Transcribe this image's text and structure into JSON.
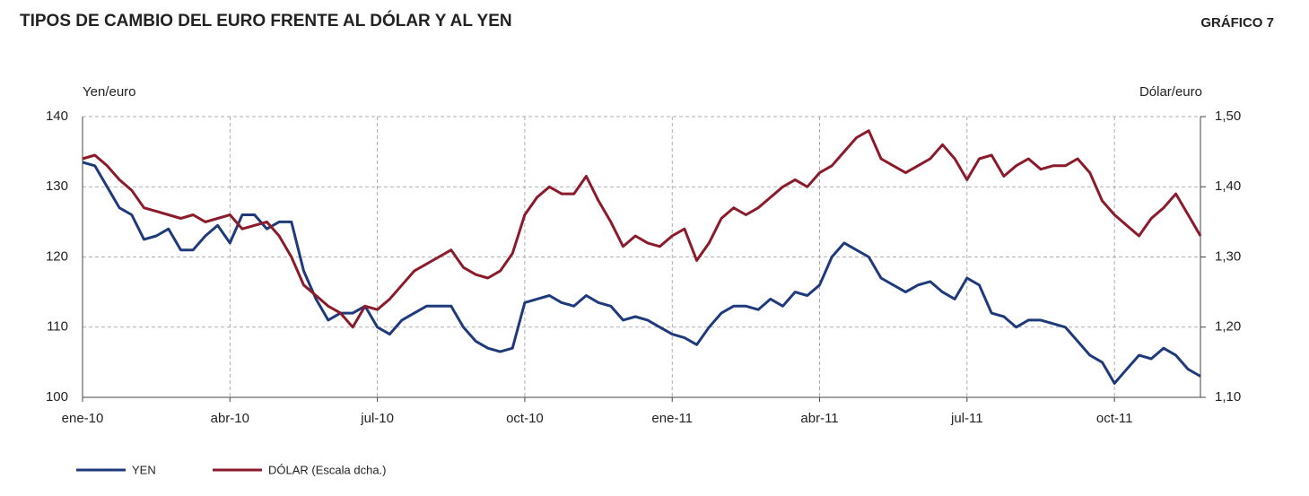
{
  "chart_data": {
    "type": "line",
    "title": "TIPOS DE CAMBIO DEL EURO FRENTE AL DÓLAR Y AL YEN",
    "tag": "GRÁFICO 7",
    "y_label": "Yen/euro",
    "y2_label": "Dólar/euro",
    "categories": [
      "ene-10",
      null,
      null,
      null,
      null,
      null,
      null,
      null,
      null,
      null,
      null,
      null,
      "abr-10",
      null,
      null,
      null,
      null,
      null,
      null,
      null,
      null,
      null,
      null,
      null,
      "jul-10",
      null,
      null,
      null,
      null,
      null,
      null,
      null,
      null,
      null,
      null,
      null,
      "oct-10",
      null,
      null,
      null,
      null,
      null,
      null,
      null,
      null,
      null,
      null,
      null,
      "ene-11",
      null,
      null,
      null,
      null,
      null,
      null,
      null,
      null,
      null,
      null,
      null,
      "abr-11",
      null,
      null,
      null,
      null,
      null,
      null,
      null,
      null,
      null,
      null,
      null,
      "jul-11",
      null,
      null,
      null,
      null,
      null,
      null,
      null,
      null,
      null,
      null,
      null,
      "oct-11",
      null,
      null,
      null,
      null,
      null,
      null,
      null
    ],
    "series": [
      {
        "name": "YEN",
        "color": "#1f3a7a",
        "values": [
          133.5,
          133,
          130,
          127,
          126,
          122.5,
          123,
          124,
          121,
          121,
          123,
          124.5,
          122,
          126,
          126,
          124,
          125,
          125,
          118,
          114,
          111,
          112,
          112,
          113,
          110,
          109,
          111,
          112,
          113,
          113,
          113,
          110,
          108,
          107,
          106.5,
          107,
          113.5,
          114,
          114.5,
          113.5,
          113,
          114.5,
          113.5,
          113,
          111,
          111.5,
          111,
          110,
          109,
          108.5,
          107.5,
          110,
          112,
          113,
          113,
          112.5,
          114,
          113,
          115,
          114.5,
          116,
          120,
          122,
          121,
          120,
          117,
          116,
          115,
          116,
          116.5,
          115,
          114,
          117,
          116,
          112,
          111.5,
          110,
          111,
          111,
          110.5,
          110,
          108,
          106,
          105,
          102,
          104,
          106,
          105.5,
          107,
          106,
          104,
          103
        ]
      },
      {
        "name": "DÓLAR (Escala dcha.)",
        "color": "#8b1a2b",
        "axis": "y2",
        "values": [
          1.44,
          1.445,
          1.43,
          1.41,
          1.395,
          1.37,
          1.365,
          1.36,
          1.355,
          1.36,
          1.35,
          1.355,
          1.36,
          1.34,
          1.345,
          1.35,
          1.33,
          1.3,
          1.26,
          1.245,
          1.23,
          1.22,
          1.2,
          1.23,
          1.225,
          1.24,
          1.26,
          1.28,
          1.29,
          1.3,
          1.31,
          1.285,
          1.275,
          1.27,
          1.28,
          1.305,
          1.36,
          1.385,
          1.4,
          1.39,
          1.39,
          1.415,
          1.38,
          1.35,
          1.315,
          1.33,
          1.32,
          1.315,
          1.33,
          1.34,
          1.295,
          1.32,
          1.355,
          1.37,
          1.36,
          1.37,
          1.385,
          1.4,
          1.41,
          1.4,
          1.42,
          1.43,
          1.45,
          1.47,
          1.48,
          1.44,
          1.43,
          1.42,
          1.43,
          1.44,
          1.46,
          1.44,
          1.41,
          1.44,
          1.445,
          1.415,
          1.43,
          1.44,
          1.425,
          1.43,
          1.43,
          1.44,
          1.42,
          1.38,
          1.36,
          1.345,
          1.33,
          1.355,
          1.37,
          1.39,
          1.36,
          1.33
        ]
      }
    ],
    "ylim": [
      100,
      140
    ],
    "yticks": [
      100,
      110,
      120,
      130,
      140
    ],
    "y2lim": [
      1.1,
      1.5
    ],
    "y2ticks": [
      {
        "value": 1.1,
        "label": "1,10"
      },
      {
        "value": 1.2,
        "label": "1,20"
      },
      {
        "value": 1.3,
        "label": "1,30"
      },
      {
        "value": 1.4,
        "label": "1,40"
      },
      {
        "value": 1.5,
        "label": "1,50"
      }
    ],
    "grid": true,
    "legend": "bottom-left"
  }
}
